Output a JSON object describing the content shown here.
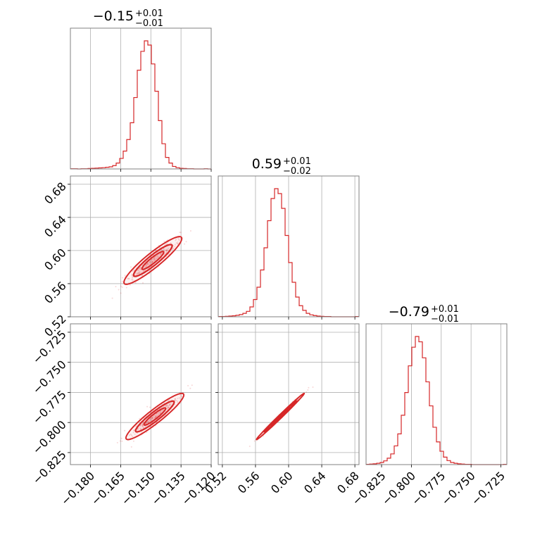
{
  "colors": {
    "accent": "#d62728",
    "grid": "#b0b0b0",
    "frame": "#808080"
  },
  "chart_data": {
    "type": "corner",
    "panels": {
      "p00": {
        "type": "histogram",
        "param": 0,
        "xlim": [
          -0.19,
          -0.12
        ],
        "title": {
          "main": "−0.15",
          "upper": "+0.01",
          "lower": "−0.01"
        },
        "bin_start": -0.19,
        "bin_width": 0.00175,
        "counts": [
          1,
          1,
          0,
          1,
          1,
          2,
          3,
          4,
          5,
          6,
          8,
          10,
          16,
          28,
          50,
          85,
          140,
          220,
          340,
          470,
          560,
          610,
          590,
          500,
          370,
          230,
          120,
          55,
          28,
          12,
          6,
          3,
          2,
          1,
          1,
          0,
          0,
          0,
          1,
          0
        ]
      },
      "p10": {
        "type": "contour",
        "params": [
          0,
          1
        ],
        "xlim": [
          -0.19,
          -0.12
        ],
        "ylim": [
          0.52,
          0.69
        ],
        "mean": [
          -0.149,
          0.588
        ],
        "sd": [
          0.006,
          0.012
        ],
        "rho": 0.92
      },
      "p11": {
        "type": "histogram",
        "param": 1,
        "xlim": [
          0.515,
          0.685
        ],
        "title": {
          "main": "0.59",
          "upper": "+0.01",
          "lower": "−0.02"
        },
        "bin_start": 0.515,
        "bin_width": 0.00425,
        "counts": [
          1,
          1,
          2,
          3,
          4,
          6,
          9,
          14,
          22,
          40,
          70,
          120,
          190,
          280,
          390,
          480,
          520,
          500,
          440,
          330,
          220,
          140,
          80,
          45,
          26,
          14,
          8,
          5,
          3,
          2,
          1,
          1,
          0,
          0,
          0,
          0,
          0,
          0,
          0,
          1
        ]
      },
      "p20": {
        "type": "contour",
        "params": [
          0,
          2
        ],
        "xlim": [
          -0.19,
          -0.12
        ],
        "ylim": [
          -0.835,
          -0.718
        ],
        "mean": [
          -0.148,
          -0.795
        ],
        "sd": [
          0.006,
          0.008
        ],
        "rho": 0.93
      },
      "p21": {
        "type": "contour",
        "params": [
          1,
          2
        ],
        "xlim": [
          0.515,
          0.685
        ],
        "ylim": [
          -0.835,
          -0.718
        ],
        "mean": [
          0.59,
          -0.795
        ],
        "sd": [
          0.012,
          0.008
        ],
        "rho": 0.995
      },
      "p22": {
        "type": "histogram",
        "param": 2,
        "xlim": [
          -0.838,
          -0.72
        ],
        "title": {
          "main": "−0.79",
          "upper": "+0.01",
          "lower": "−0.01"
        },
        "bin_start": -0.838,
        "bin_width": 0.00295,
        "counts": [
          1,
          2,
          3,
          5,
          8,
          14,
          24,
          40,
          70,
          115,
          185,
          270,
          370,
          440,
          480,
          460,
          400,
          310,
          220,
          140,
          85,
          50,
          28,
          15,
          8,
          5,
          3,
          2,
          1,
          1,
          0,
          0,
          0,
          0,
          0,
          0,
          0,
          0,
          0,
          1
        ]
      }
    },
    "axes": {
      "param0_ticks": [
        "−0.180",
        "−0.165",
        "−0.150",
        "−0.135",
        "−0.120"
      ],
      "param0_tick_values": [
        -0.18,
        -0.165,
        -0.15,
        -0.135,
        -0.12
      ],
      "param1_ticks": [
        "0.52",
        "0.56",
        "0.60",
        "0.64",
        "0.68"
      ],
      "param1_tick_values": [
        0.52,
        0.56,
        0.6,
        0.64,
        0.68
      ],
      "param2_ticks": [
        "−0.825",
        "−0.800",
        "−0.775",
        "−0.750",
        "−0.725"
      ],
      "param2_tick_values": [
        -0.825,
        -0.8,
        -0.775,
        -0.75,
        -0.725
      ]
    },
    "grid": true,
    "legend": "none"
  }
}
